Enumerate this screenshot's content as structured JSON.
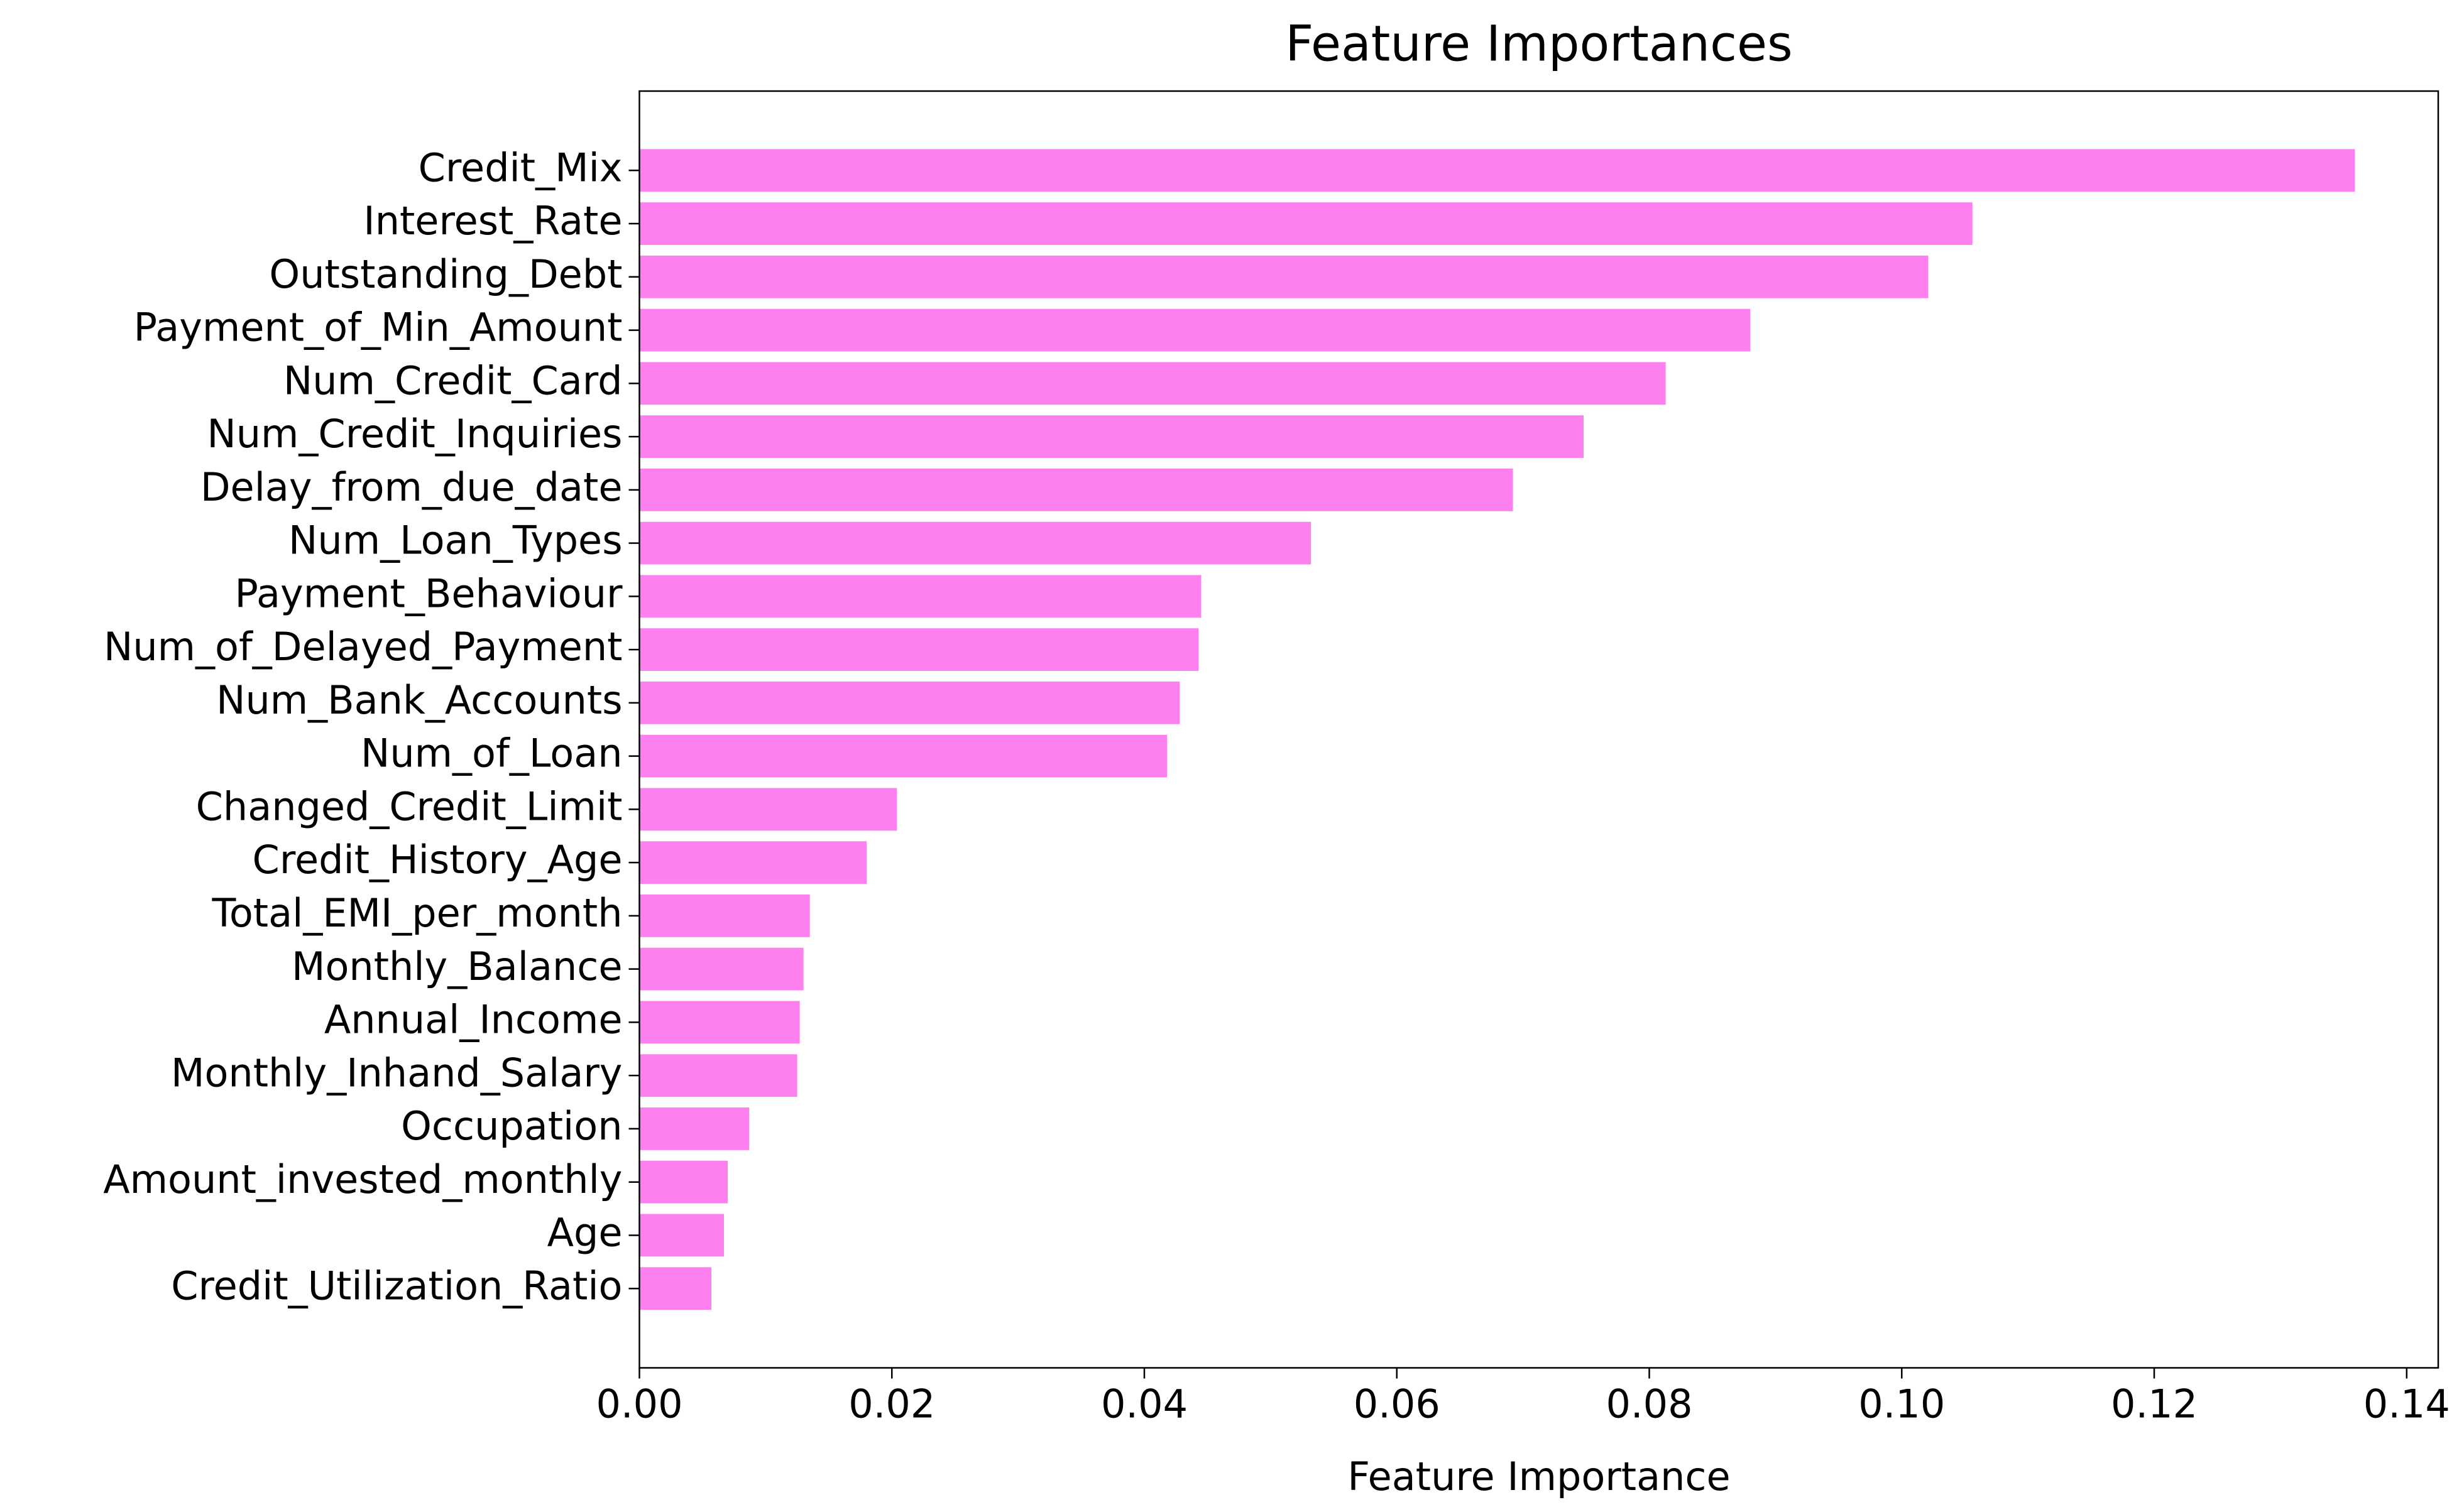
{
  "chart_data": {
    "type": "barh",
    "title": "Feature Importances",
    "xlabel": "Feature Importance",
    "categories": [
      "Credit_Mix",
      "Interest_Rate",
      "Outstanding_Debt",
      "Payment_of_Min_Amount",
      "Num_Credit_Card",
      "Num_Credit_Inquiries",
      "Delay_from_due_date",
      "Num_Loan_Types",
      "Payment_Behaviour",
      "Num_of_Delayed_Payment",
      "Num_Bank_Accounts",
      "Num_of_Loan",
      "Changed_Credit_Limit",
      "Credit_History_Age",
      "Total_EMI_per_month",
      "Monthly_Balance",
      "Annual_Income",
      "Monthly_Inhand_Salary",
      "Occupation",
      "Amount_invested_monthly",
      "Age",
      "Credit_Utilization_Ratio"
    ],
    "values": [
      0.1359,
      0.1056,
      0.1021,
      0.088,
      0.0813,
      0.0748,
      0.0692,
      0.0532,
      0.0445,
      0.0443,
      0.0428,
      0.0418,
      0.0204,
      0.018,
      0.0135,
      0.013,
      0.0127,
      0.0125,
      0.0087,
      0.007,
      0.0067,
      0.0057
    ],
    "color": "#fe80ef",
    "xlim": [
      0,
      0.1425
    ],
    "xticks": [
      {
        "value": 0,
        "label": "0.00"
      },
      {
        "value": 0.02,
        "label": "0.02"
      },
      {
        "value": 0.04,
        "label": "0.04"
      },
      {
        "value": 0.06,
        "label": "0.06"
      },
      {
        "value": 0.08,
        "label": "0.08"
      },
      {
        "value": 0.1,
        "label": "0.10"
      },
      {
        "value": 0.12,
        "label": "0.12"
      },
      {
        "value": 0.14,
        "label": "0.14"
      }
    ],
    "grid": false
  }
}
